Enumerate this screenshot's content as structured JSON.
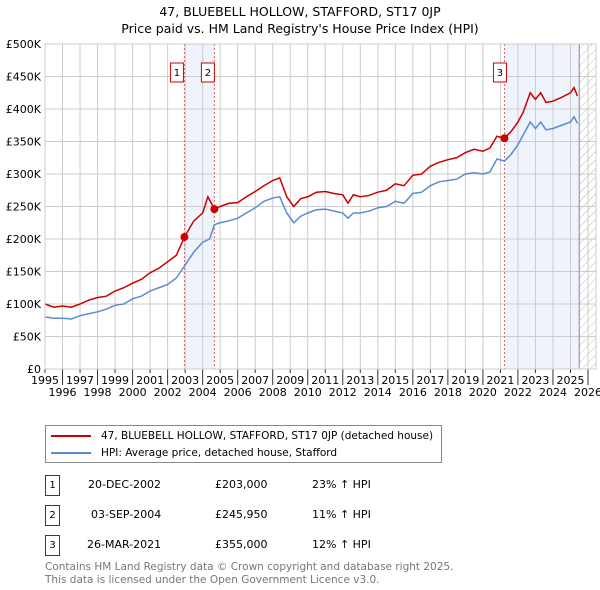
{
  "chart_data": {
    "type": "line",
    "title": "47, BLUEBELL HOLLOW, STAFFORD, ST17 0JP",
    "subtitle": "Price paid vs. HM Land Registry's House Price Index (HPI)",
    "xlim": [
      1995,
      2026
    ],
    "ylim": [
      0,
      500000
    ],
    "x_ticks": [
      "1995",
      "1996",
      "1997",
      "1998",
      "1999",
      "2000",
      "2001",
      "2002",
      "2003",
      "2004",
      "2005",
      "2006",
      "2007",
      "2008",
      "2009",
      "2010",
      "2011",
      "2012",
      "2013",
      "2014",
      "2015",
      "2016",
      "2017",
      "2018",
      "2019",
      "2020",
      "2021",
      "2022",
      "2023",
      "2024",
      "2025",
      "2026"
    ],
    "y_ticks": [
      {
        "v": 0,
        "label": "£0"
      },
      {
        "v": 50000,
        "label": "£50K"
      },
      {
        "v": 100000,
        "label": "£100K"
      },
      {
        "v": 150000,
        "label": "£150K"
      },
      {
        "v": 200000,
        "label": "£200K"
      },
      {
        "v": 250000,
        "label": "£250K"
      },
      {
        "v": 300000,
        "label": "£300K"
      },
      {
        "v": 350000,
        "label": "£350K"
      },
      {
        "v": 400000,
        "label": "£400K"
      },
      {
        "v": 450000,
        "label": "£450K"
      },
      {
        "v": 500000,
        "label": "£500K"
      }
    ],
    "grid": true,
    "series": [
      {
        "name": "47, BLUEBELL HOLLOW, STAFFORD, ST17 0JP (detached house)",
        "color": "#cc0000",
        "x": [
          1995,
          1995.5,
          1996,
          1996.5,
          1997,
          1997.5,
          1998,
          1998.5,
          1999,
          1999.5,
          2000,
          2000.5,
          2001,
          2001.5,
          2002,
          2002.5,
          2002.96,
          2003.5,
          2004,
          2004.3,
          2004.67,
          2005,
          2005.5,
          2006,
          2006.5,
          2007,
          2007.5,
          2008,
          2008.4,
          2008.8,
          2009.2,
          2009.6,
          2010,
          2010.5,
          2011,
          2011.5,
          2012,
          2012.3,
          2012.6,
          2013,
          2013.5,
          2014,
          2014.5,
          2015,
          2015.5,
          2016,
          2016.5,
          2017,
          2017.5,
          2018,
          2018.5,
          2019,
          2019.5,
          2020,
          2020.4,
          2020.8,
          2021.23,
          2021.6,
          2022,
          2022.3,
          2022.7,
          2023,
          2023.3,
          2023.6,
          2024,
          2024.5,
          2025,
          2025.2,
          2025.4
        ],
        "y": [
          100000,
          95000,
          97000,
          95000,
          100000,
          106000,
          110000,
          112000,
          120000,
          125000,
          132000,
          138000,
          148000,
          155000,
          165000,
          175000,
          203000,
          228000,
          240000,
          265000,
          246000,
          250000,
          255000,
          256000,
          265000,
          273000,
          282000,
          290000,
          294000,
          265000,
          250000,
          262000,
          265000,
          272000,
          273000,
          270000,
          268000,
          255000,
          268000,
          265000,
          267000,
          272000,
          275000,
          285000,
          282000,
          298000,
          300000,
          312000,
          318000,
          322000,
          325000,
          333000,
          338000,
          335000,
          340000,
          358000,
          355000,
          365000,
          380000,
          395000,
          425000,
          415000,
          425000,
          410000,
          412000,
          418000,
          425000,
          433000,
          420000
        ]
      },
      {
        "name": "HPI: Average price, detached house, Stafford",
        "color": "#5b8bd0",
        "x": [
          1995,
          1995.5,
          1996,
          1996.5,
          1997,
          1997.5,
          1998,
          1998.5,
          1999,
          1999.5,
          2000,
          2000.5,
          2001,
          2001.5,
          2002,
          2002.5,
          2003,
          2003.5,
          2004,
          2004.4,
          2004.67,
          2005,
          2005.5,
          2006,
          2006.5,
          2007,
          2007.5,
          2008,
          2008.4,
          2008.8,
          2009.2,
          2009.6,
          2010,
          2010.5,
          2011,
          2011.5,
          2012,
          2012.3,
          2012.6,
          2013,
          2013.5,
          2014,
          2014.5,
          2015,
          2015.5,
          2016,
          2016.5,
          2017,
          2017.5,
          2018,
          2018.5,
          2019,
          2019.5,
          2020,
          2020.4,
          2020.8,
          2021.23,
          2021.6,
          2022,
          2022.3,
          2022.7,
          2023,
          2023.3,
          2023.6,
          2024,
          2024.5,
          2025,
          2025.2,
          2025.4
        ],
        "y": [
          80000,
          78000,
          78000,
          77000,
          82000,
          85000,
          88000,
          92000,
          98000,
          100000,
          108000,
          112000,
          120000,
          125000,
          130000,
          140000,
          160000,
          180000,
          195000,
          200000,
          222000,
          225000,
          228000,
          232000,
          240000,
          248000,
          258000,
          263000,
          265000,
          240000,
          225000,
          235000,
          240000,
          245000,
          246000,
          243000,
          240000,
          232000,
          240000,
          240000,
          243000,
          248000,
          250000,
          258000,
          255000,
          270000,
          272000,
          282000,
          288000,
          290000,
          292000,
          300000,
          302000,
          300000,
          303000,
          323000,
          320000,
          330000,
          345000,
          360000,
          380000,
          370000,
          380000,
          368000,
          370000,
          375000,
          380000,
          388000,
          378000
        ]
      }
    ],
    "sales": [
      {
        "label": "1",
        "x": 2002.96,
        "y": 203000,
        "date": "20-DEC-2002",
        "price": "£203,000",
        "hpi": "23% ↑ HPI"
      },
      {
        "label": "2",
        "x": 2004.67,
        "y": 245950,
        "date": "03-SEP-2004",
        "price": "£245,950",
        "hpi": "11% ↑ HPI"
      },
      {
        "label": "3",
        "x": 2021.23,
        "y": 355000,
        "date": "26-MAR-2021",
        "price": "£355,000",
        "hpi": "12% ↑ HPI"
      }
    ],
    "shaded_ranges": [
      [
        2002.96,
        2004.67
      ],
      [
        2021.23,
        2025.5
      ]
    ],
    "forecast_start": 2025.5,
    "legend_placement": "below"
  },
  "footer": {
    "line1": "Contains HM Land Registry data © Crown copyright and database right 2025.",
    "line2": "This data is licensed under the Open Government Licence v3.0."
  }
}
